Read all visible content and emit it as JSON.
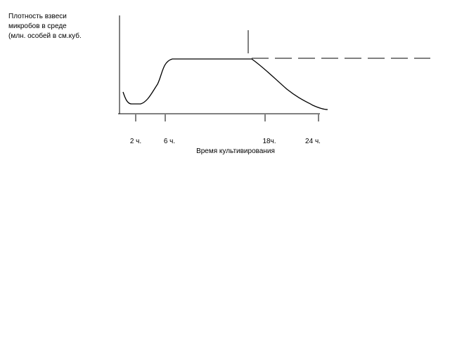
{
  "y_axis_label": [
    "Плотность взвеси",
    "микробов в среде",
    "(млн. особей в см.куб."
  ],
  "x_axis_label": "Время культивирования",
  "x_ticks": [
    "2 ч.",
    "6 ч.",
    "18ч.",
    "24 ч."
  ]
}
